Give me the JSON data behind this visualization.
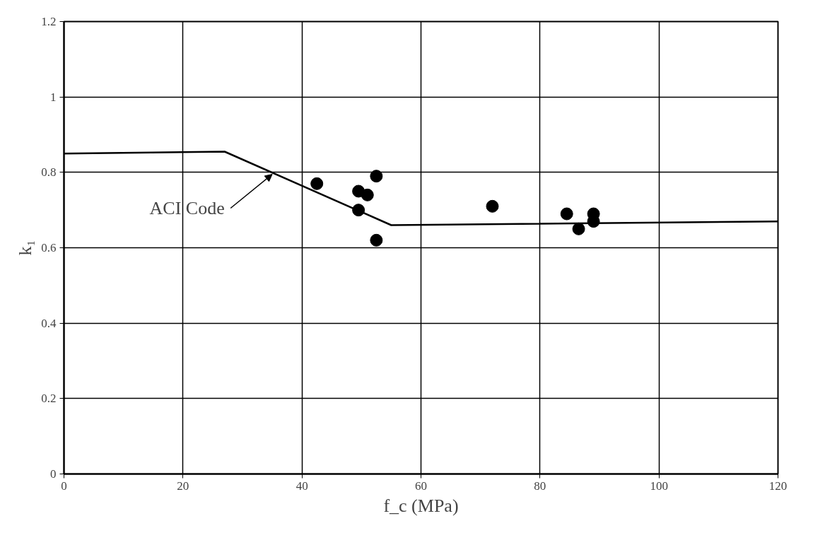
{
  "chart_data": {
    "type": "scatter",
    "xlabel": "f_c (MPa)",
    "ylabel": "k₁",
    "xlim": [
      0,
      120
    ],
    "ylim": [
      0,
      1.2
    ],
    "xticks": [
      0,
      20,
      40,
      60,
      80,
      100,
      120
    ],
    "yticks": [
      {
        "value": 0,
        "label": "0"
      },
      0.2,
      0.4,
      0.6,
      0.8,
      {
        "value": 1,
        "label": "1"
      },
      1.2
    ],
    "grid": true,
    "series": [
      {
        "marker": "circle",
        "color": "#000000",
        "x": [
          42.5,
          49.5,
          49.5,
          51,
          52.5,
          52.5,
          72,
          84.5,
          86.5,
          89,
          89
        ],
        "values": [
          0.77,
          0.75,
          0.7,
          0.74,
          0.79,
          0.62,
          0.71,
          0.69,
          0.65,
          0.69,
          0.67
        ]
      },
      {
        "type": "line",
        "color": "#000000",
        "x": [
          0,
          27,
          55,
          120
        ],
        "values": [
          0.85,
          0.855,
          0.66,
          0.67
        ]
      }
    ],
    "annotations": [
      {
        "text": "ACI Code",
        "x": 35,
        "y": 0.795
      }
    ]
  }
}
